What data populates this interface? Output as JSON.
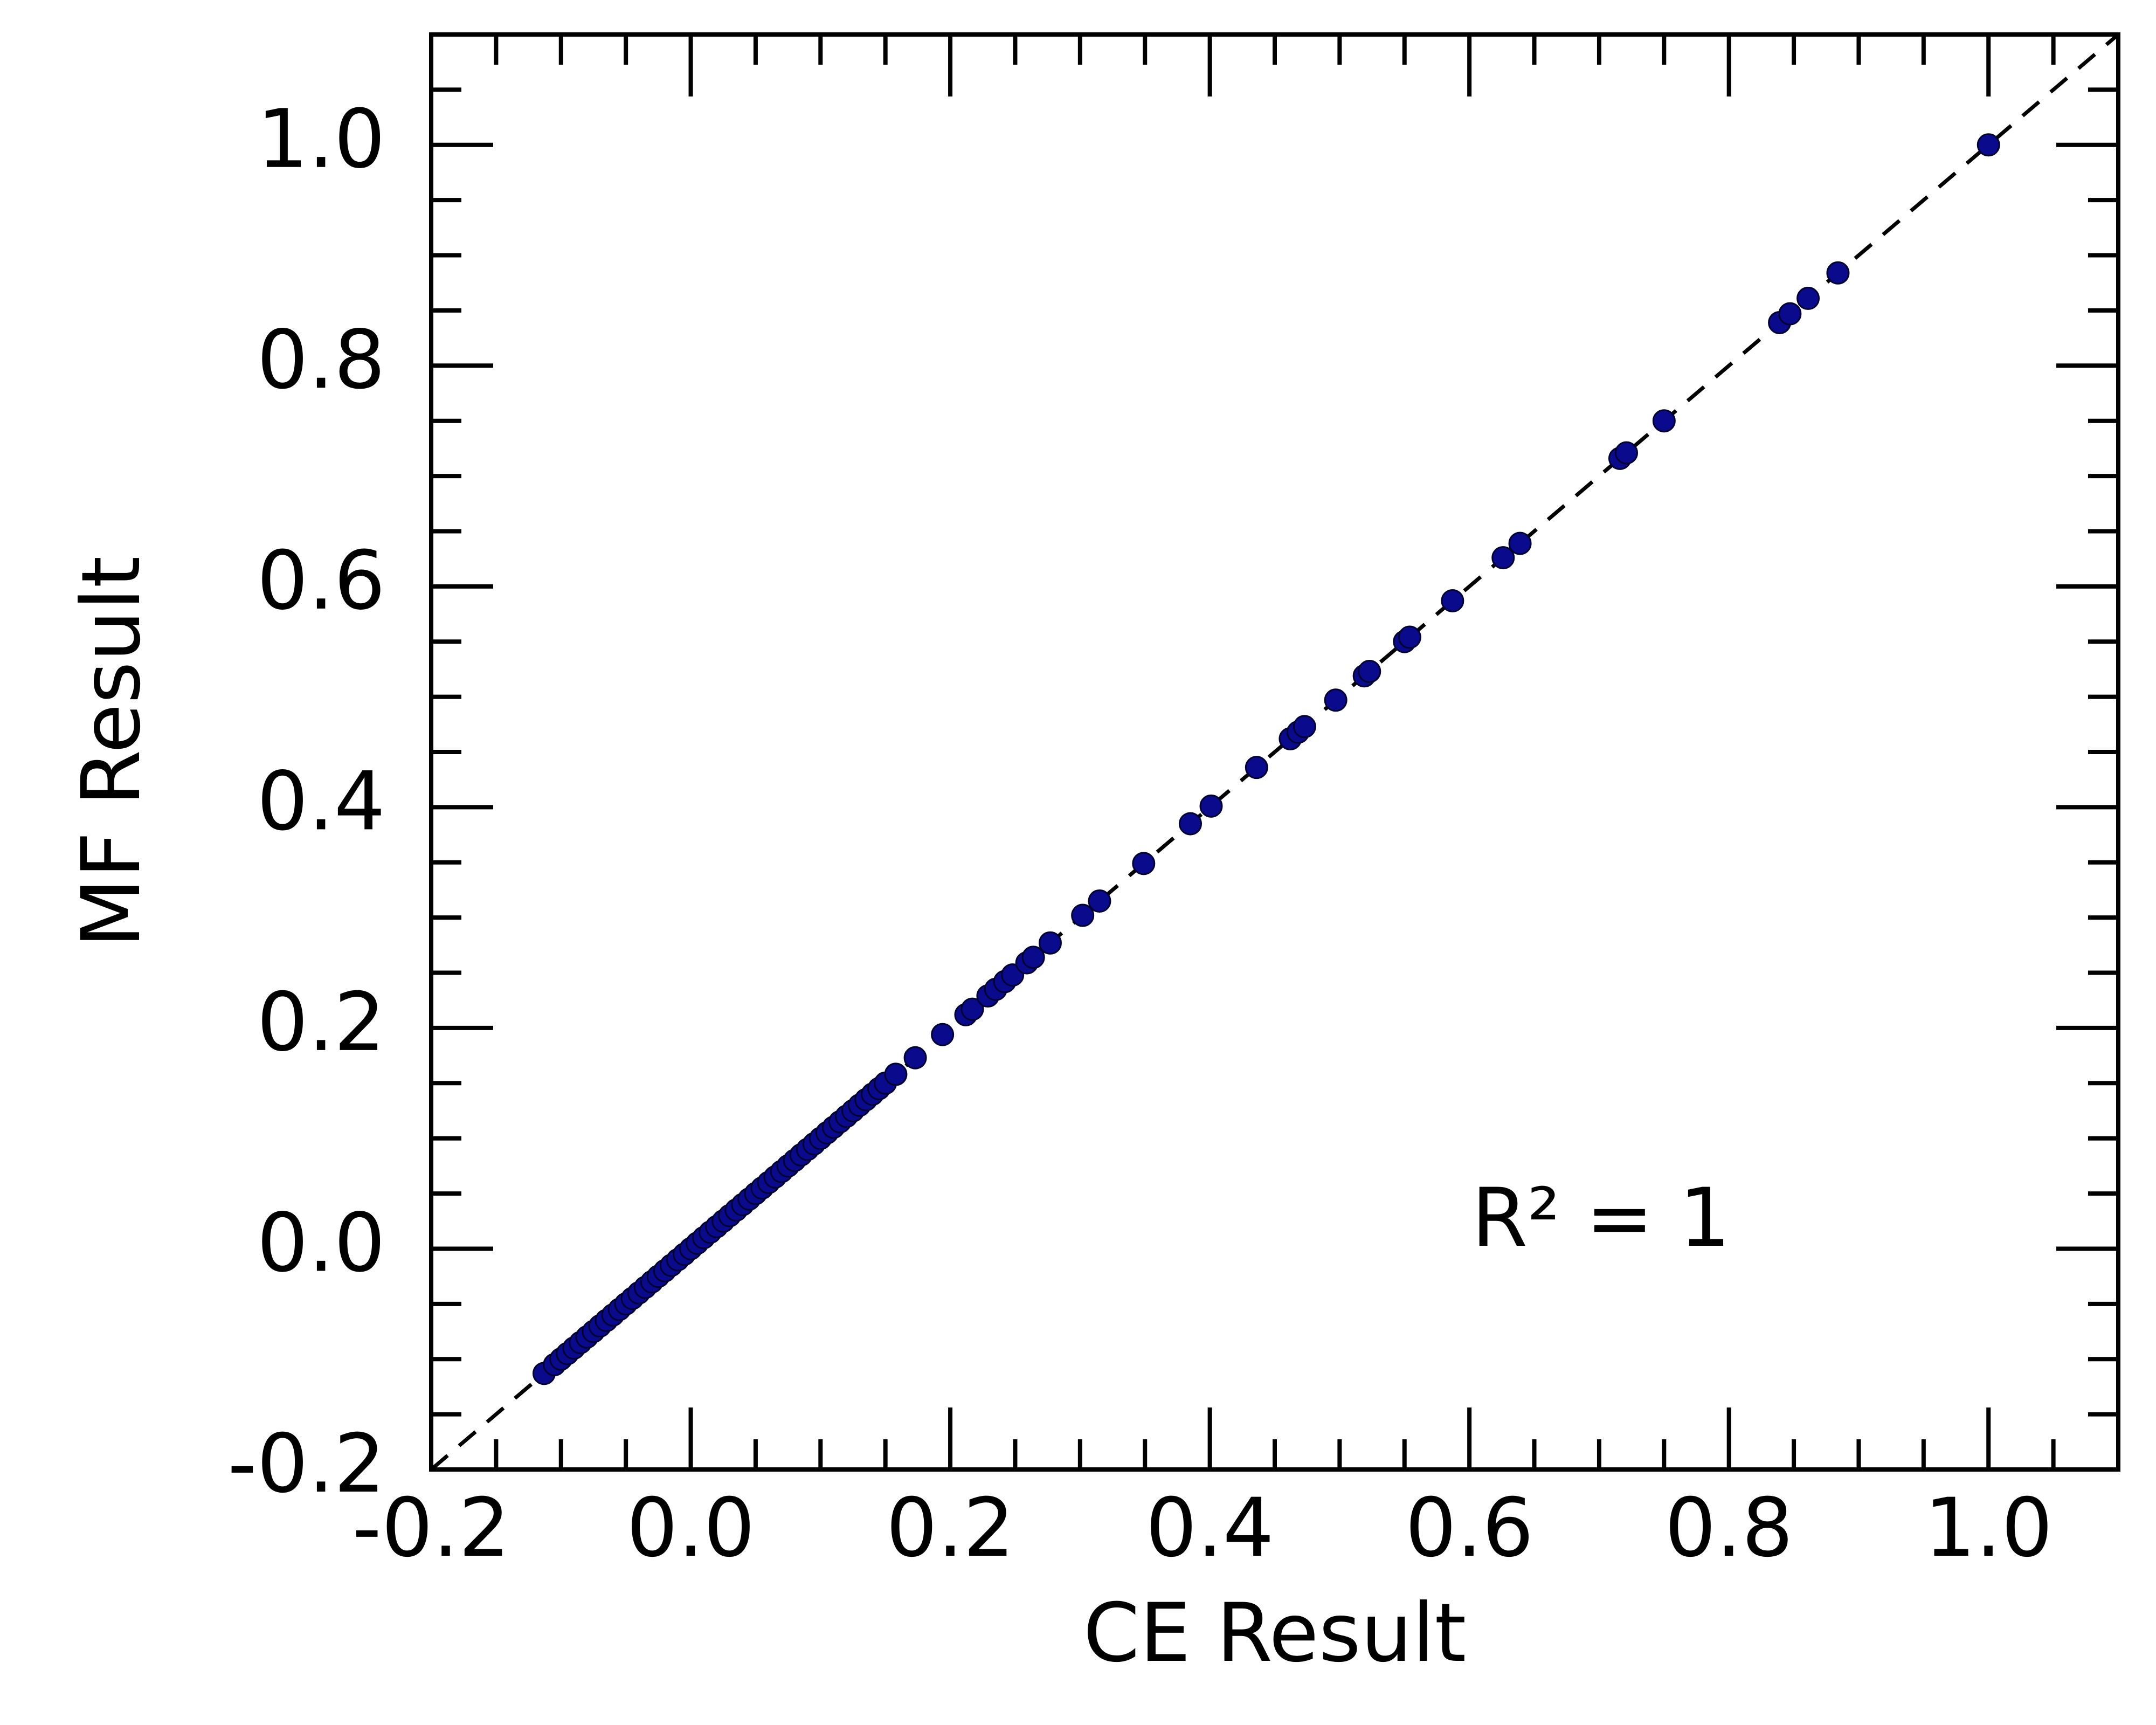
{
  "chart_data": {
    "type": "scatter",
    "xlabel": "CE Result",
    "ylabel": "MF Result",
    "annotation": "R² = 1",
    "color": "#0a0a8c",
    "diagonal": true,
    "xlim": [
      -0.2,
      1.1
    ],
    "ylim": [
      -0.2,
      1.1
    ],
    "xticks": [
      -0.2,
      {
        "value": 0,
        "label": "0.0"
      },
      0.2,
      0.4,
      0.6,
      0.8,
      {
        "value": 1,
        "label": "1.0"
      }
    ],
    "yticks": [
      -0.2,
      {
        "value": 0,
        "label": "0.0"
      },
      0.2,
      0.4,
      0.6,
      0.8,
      {
        "value": 1,
        "label": "1.0"
      }
    ],
    "xminorticks": [
      -0.15,
      -0.1,
      -0.05,
      0.05,
      0.1,
      0.15,
      0.25,
      0.3,
      0.35,
      0.45,
      0.5,
      0.55,
      0.65,
      0.7,
      0.75,
      0.85,
      0.9,
      0.95,
      1.05
    ],
    "yminorticks": [
      -0.15,
      -0.1,
      -0.05,
      0.05,
      0.1,
      0.15,
      0.25,
      0.3,
      0.35,
      0.45,
      0.5,
      0.55,
      0.65,
      0.7,
      0.75,
      0.85,
      0.9,
      0.95,
      1.05
    ],
    "x": [
      -0.113,
      -0.105,
      -0.1,
      -0.095,
      -0.09,
      -0.085,
      -0.08,
      -0.075,
      -0.07,
      -0.065,
      -0.06,
      -0.055,
      -0.05,
      -0.045,
      -0.04,
      -0.035,
      -0.03,
      -0.025,
      -0.02,
      -0.015,
      -0.01,
      -0.005,
      0,
      0.005,
      0.01,
      0.015,
      0.02,
      0.025,
      0.03,
      0.035,
      0.04,
      0.045,
      0.05,
      0.055,
      0.06,
      0.065,
      0.07,
      0.075,
      0.08,
      0.085,
      0.09,
      0.095,
      0.1,
      0.105,
      0.11,
      0.115,
      0.12,
      0.125,
      0.13,
      0.135,
      0.14,
      0.145,
      0.15,
      0.158,
      0.173,
      0.194,
      0.212,
      0.217,
      0.229,
      0.235,
      0.242,
      0.248,
      0.259,
      0.264,
      0.277,
      0.302,
      0.315,
      0.349,
      0.385,
      0.401,
      0.436,
      0.462,
      0.468,
      0.473,
      0.497,
      0.519,
      0.523,
      0.55,
      0.554,
      0.587,
      0.626,
      0.639,
      0.716,
      0.721,
      0.75,
      0.839,
      0.847,
      0.861,
      0.884,
      1.0
    ],
    "values": [
      -0.113,
      -0.105,
      -0.1,
      -0.095,
      -0.09,
      -0.085,
      -0.08,
      -0.075,
      -0.07,
      -0.065,
      -0.06,
      -0.055,
      -0.05,
      -0.045,
      -0.04,
      -0.035,
      -0.03,
      -0.025,
      -0.02,
      -0.015,
      -0.01,
      -0.005,
      0,
      0.005,
      0.01,
      0.015,
      0.02,
      0.025,
      0.03,
      0.035,
      0.04,
      0.045,
      0.05,
      0.055,
      0.06,
      0.065,
      0.07,
      0.075,
      0.08,
      0.085,
      0.09,
      0.095,
      0.1,
      0.105,
      0.11,
      0.115,
      0.12,
      0.125,
      0.13,
      0.135,
      0.14,
      0.145,
      0.15,
      0.158,
      0.173,
      0.194,
      0.212,
      0.217,
      0.229,
      0.235,
      0.242,
      0.248,
      0.259,
      0.264,
      0.277,
      0.302,
      0.315,
      0.349,
      0.385,
      0.401,
      0.436,
      0.462,
      0.468,
      0.473,
      0.497,
      0.519,
      0.523,
      0.55,
      0.554,
      0.587,
      0.626,
      0.639,
      0.716,
      0.721,
      0.75,
      0.839,
      0.847,
      0.861,
      0.884,
      1.0
    ]
  }
}
